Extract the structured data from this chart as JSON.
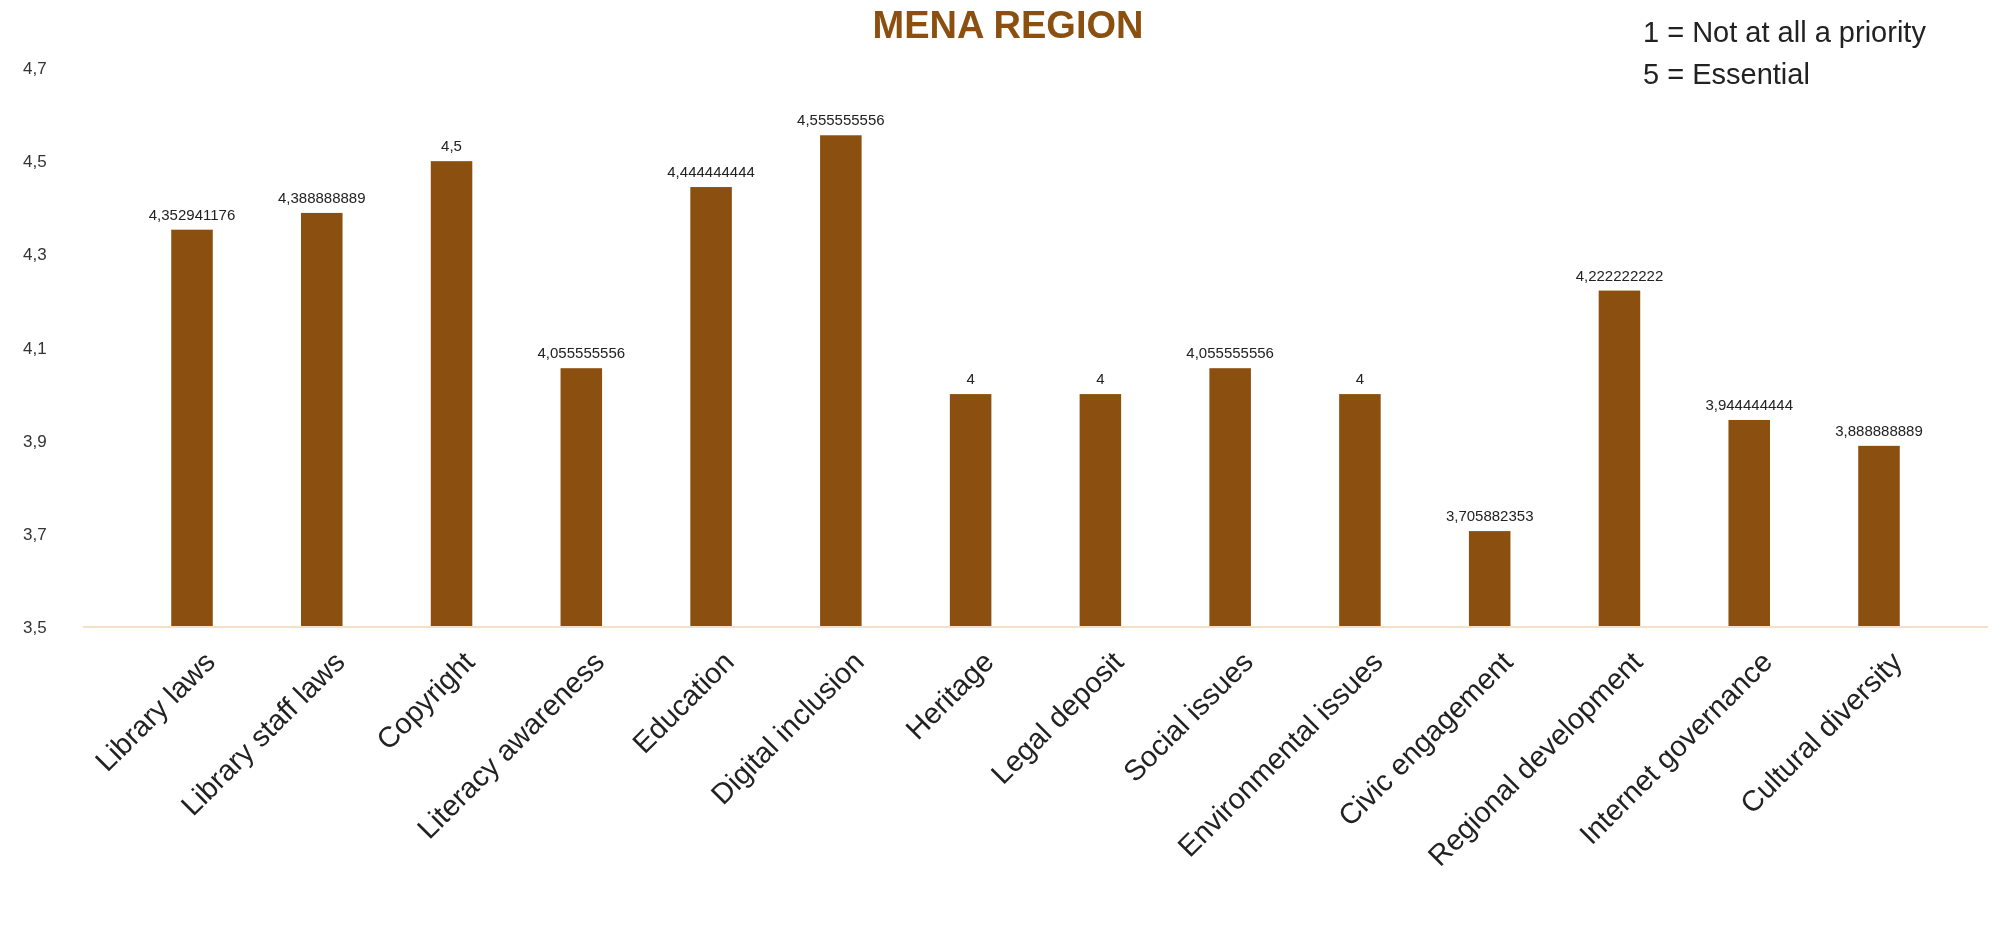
{
  "chart_data": {
    "type": "bar",
    "title": "MENA REGION",
    "categories": [
      "Library laws",
      "Library staff laws",
      "Copyright",
      "Literacy awareness",
      "Education",
      "Digital inclusion",
      "Heritage",
      "Legal deposit",
      "Social issues",
      "Environmental issues",
      "Civic engagement",
      "Regional development",
      "Internet governance",
      "Cultural diversity"
    ],
    "values": [
      4.352941176,
      4.388888889,
      4.5,
      4.055555556,
      4.444444444,
      4.555555556,
      4,
      4,
      4.055555556,
      4,
      3.705882353,
      4.222222222,
      3.944444444,
      3.888888889
    ],
    "value_labels": [
      "4,352941176",
      "4,388888889",
      "4,5",
      "4,055555556",
      "4,444444444",
      "4,555555556",
      "4",
      "4",
      "4,055555556",
      "4",
      "3,705882353",
      "4,222222222",
      "3,944444444",
      "3,888888889"
    ],
    "color": "#8b5010",
    "ylim": [
      3.5,
      4.7
    ],
    "yticks": [
      {
        "value": 3.5,
        "label": "3,5"
      },
      {
        "value": 3.7,
        "label": "3,7"
      },
      {
        "value": 3.9,
        "label": "3,9"
      },
      {
        "value": 4.1,
        "label": "4,1"
      },
      {
        "value": 4.3,
        "label": "4,3"
      },
      {
        "value": 4.5,
        "label": "4,5"
      },
      {
        "value": 4.7,
        "label": "4,7"
      }
    ],
    "grid": false,
    "annotations": [
      "1 = Not at all a priority",
      "5 = Essential"
    ]
  }
}
